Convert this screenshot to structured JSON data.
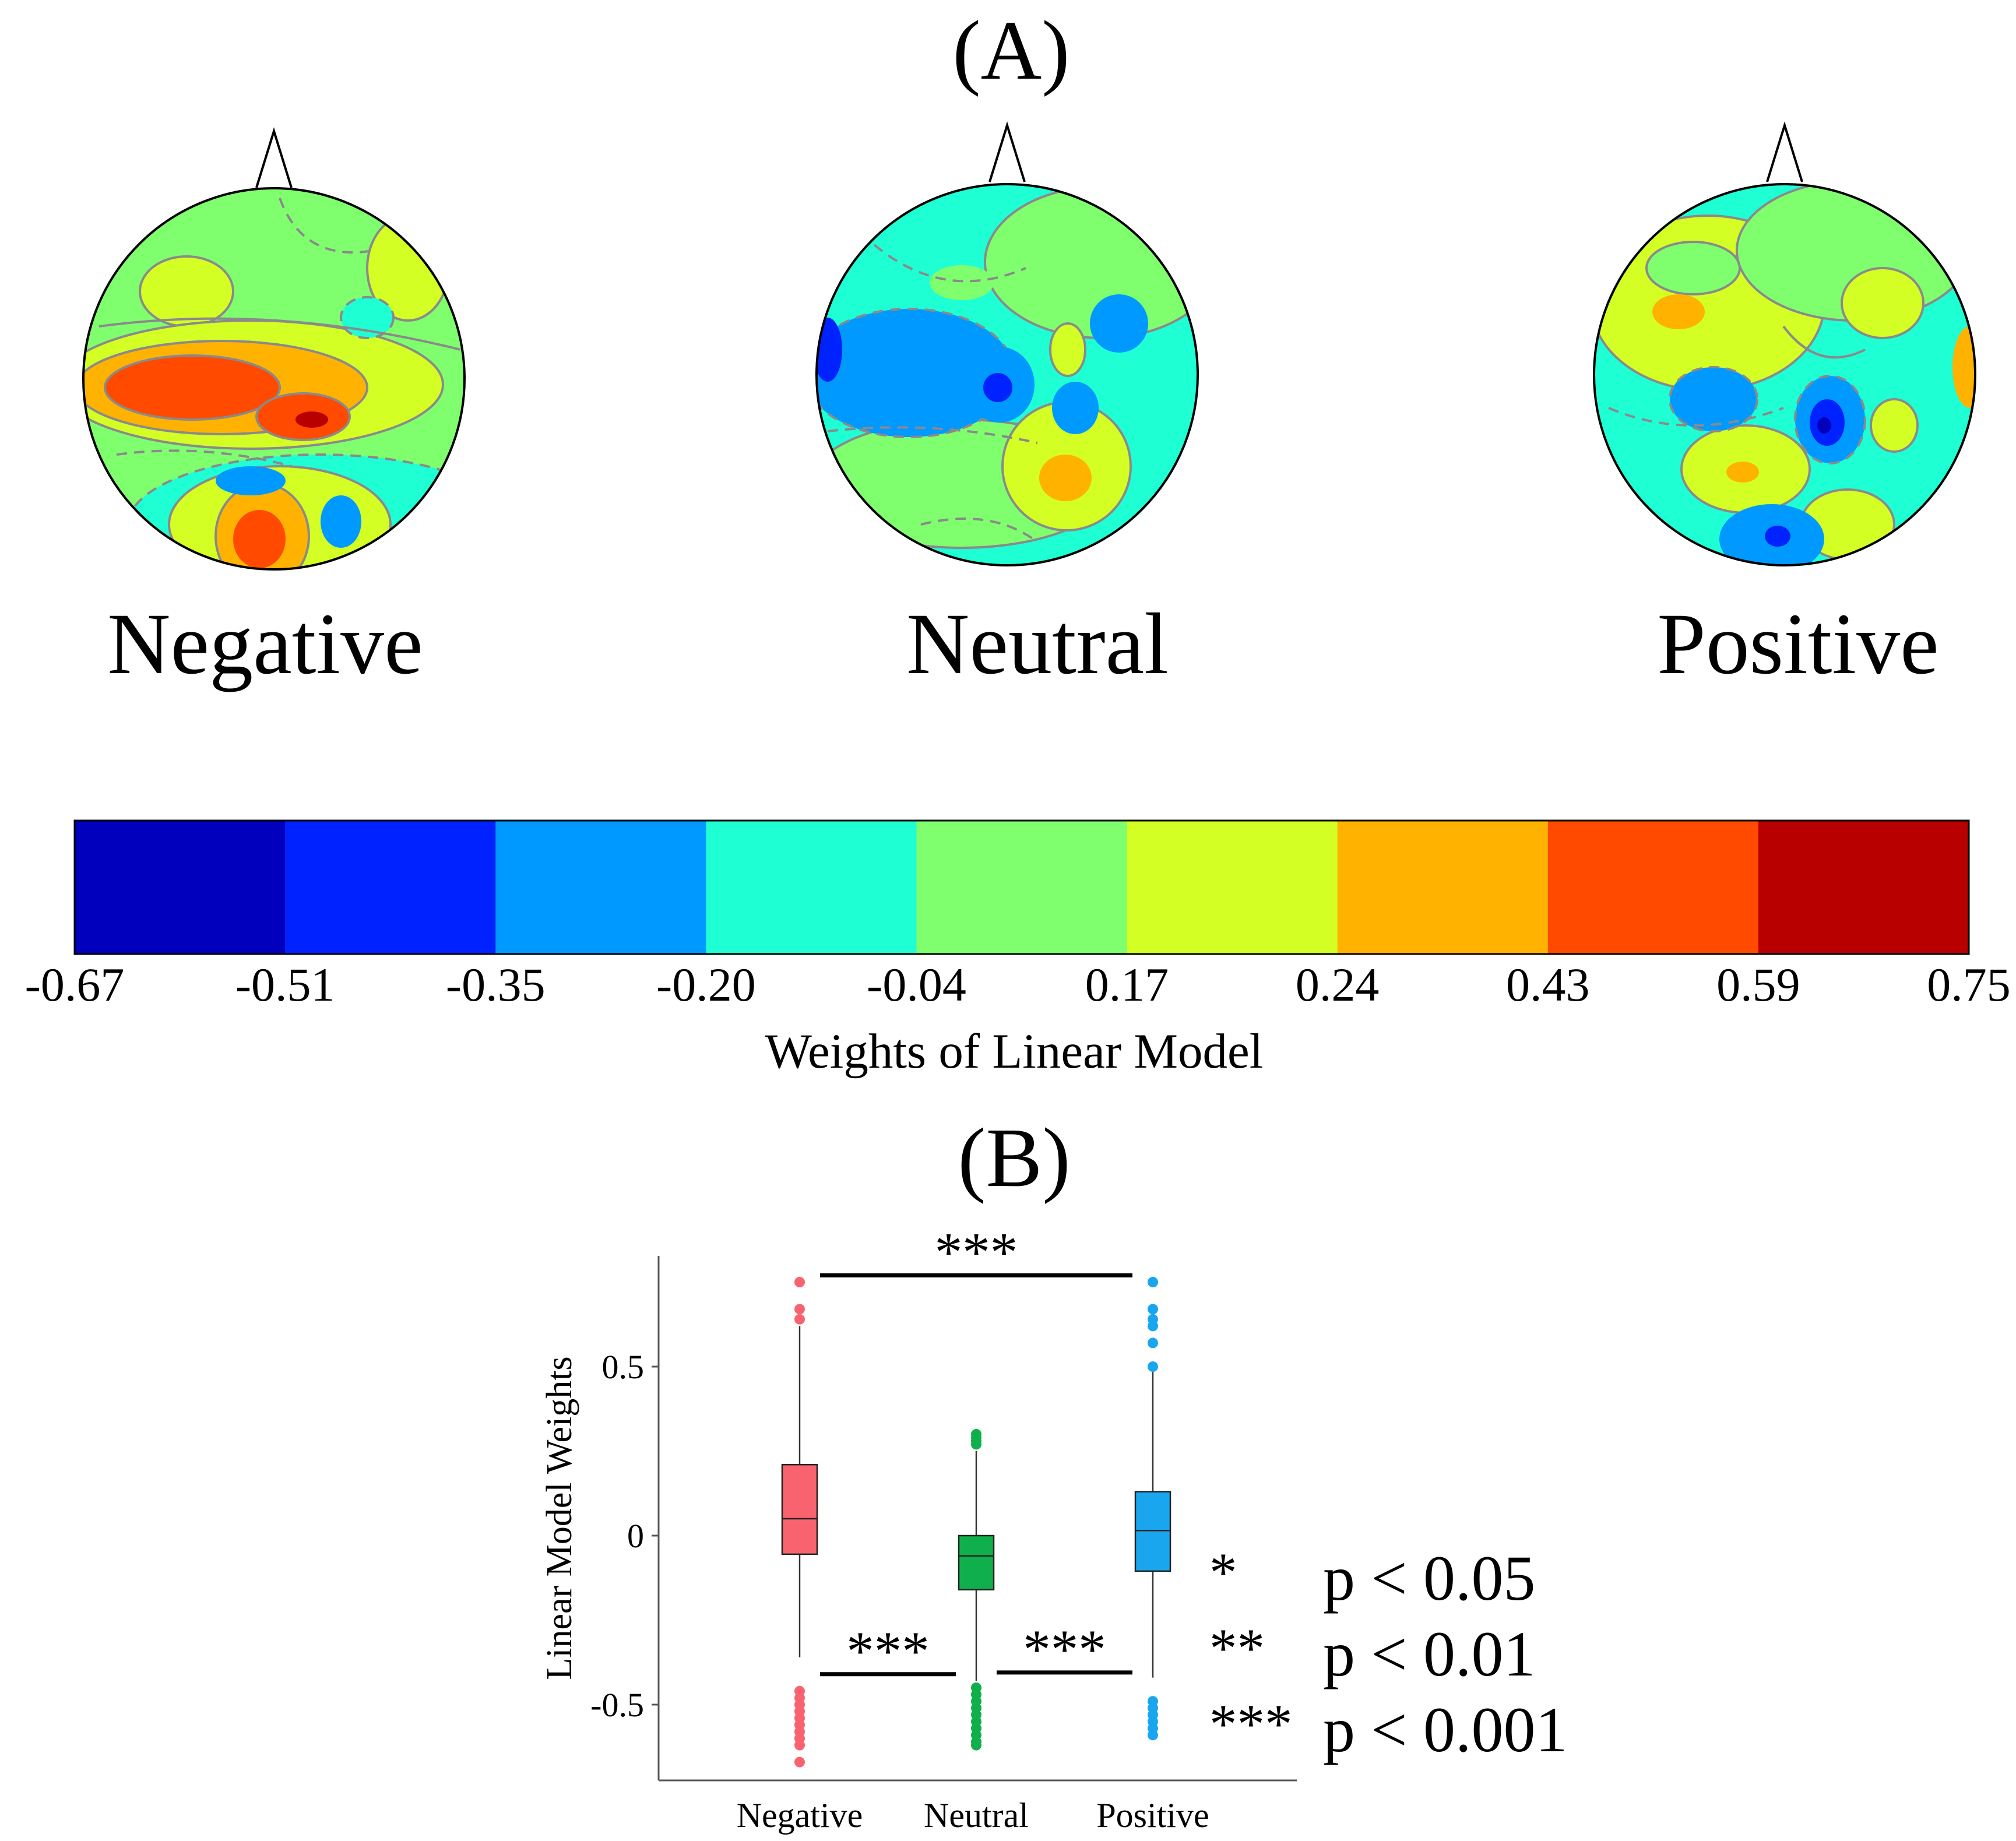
{
  "panel_a": {
    "label": "(A)",
    "topomaps": [
      {
        "name": "Negative",
        "label": "Negative"
      },
      {
        "name": "Neutral",
        "label": "Neutral"
      },
      {
        "name": "Positive",
        "label": "Positive"
      }
    ],
    "colorbar": {
      "title": "Weights of Linear Model",
      "ticks": [
        "-0.67",
        "-0.51",
        "-0.35",
        "-0.20",
        "-0.04",
        "0.17",
        "0.24",
        "0.43",
        "0.59",
        "0.75"
      ],
      "colors": [
        "#0000bd",
        "#0022ff",
        "#0099ff",
        "#1effd4",
        "#80ff6e",
        "#d4ff24",
        "#ffb300",
        "#ff4a00",
        "#b80000"
      ]
    }
  },
  "panel_b": {
    "label": "(B)"
  },
  "chart_data": {
    "type": "box",
    "title": "(B)",
    "xlabel": "",
    "ylabel": "Linear Model Weights",
    "ylim": [
      -0.72,
      0.82
    ],
    "yticks": [
      -0.5,
      0,
      0.5
    ],
    "ytick_labels": [
      "-0.5",
      "0",
      "0.5"
    ],
    "categories": [
      "Negative",
      "Neutral",
      "Positive"
    ],
    "series": [
      {
        "name": "Negative",
        "color": "#f8636f",
        "q1": -0.055,
        "median": 0.05,
        "q3": 0.21,
        "whisker_low": -0.36,
        "whisker_high": 0.62,
        "outliers": [
          0.75,
          0.67,
          0.64,
          -0.46,
          -0.48,
          -0.5,
          -0.52,
          -0.54,
          -0.56,
          -0.58,
          -0.6,
          -0.62,
          -0.67
        ]
      },
      {
        "name": "Neutral",
        "color": "#0fb04b",
        "q1": -0.16,
        "median": -0.06,
        "q3": 0.0,
        "whisker_low": -0.43,
        "whisker_high": 0.25,
        "outliers": [
          0.3,
          0.29,
          0.28,
          0.27,
          -0.45,
          -0.47,
          -0.49,
          -0.51,
          -0.53,
          -0.55,
          -0.57,
          -0.59,
          -0.61,
          -0.62
        ]
      },
      {
        "name": "Positive",
        "color": "#1aa6ef",
        "q1": -0.105,
        "median": 0.015,
        "q3": 0.13,
        "whisker_low": -0.42,
        "whisker_high": 0.5,
        "outliers": [
          0.75,
          0.67,
          0.64,
          0.62,
          0.57,
          0.5,
          -0.49,
          -0.51,
          -0.53,
          -0.55,
          -0.57,
          -0.59
        ]
      }
    ],
    "significance": [
      {
        "pair": [
          "Negative",
          "Positive"
        ],
        "label": "***",
        "y": 0.77
      },
      {
        "pair": [
          "Negative",
          "Neutral"
        ],
        "label": "***",
        "y": -0.41
      },
      {
        "pair": [
          "Neutral",
          "Positive"
        ],
        "label": "***",
        "y": -0.405
      }
    ],
    "legend": [
      {
        "stars": "*",
        "text": "p < 0.05"
      },
      {
        "stars": "**",
        "text": "p < 0.01"
      },
      {
        "stars": "***",
        "text": "p < 0.001"
      }
    ]
  }
}
